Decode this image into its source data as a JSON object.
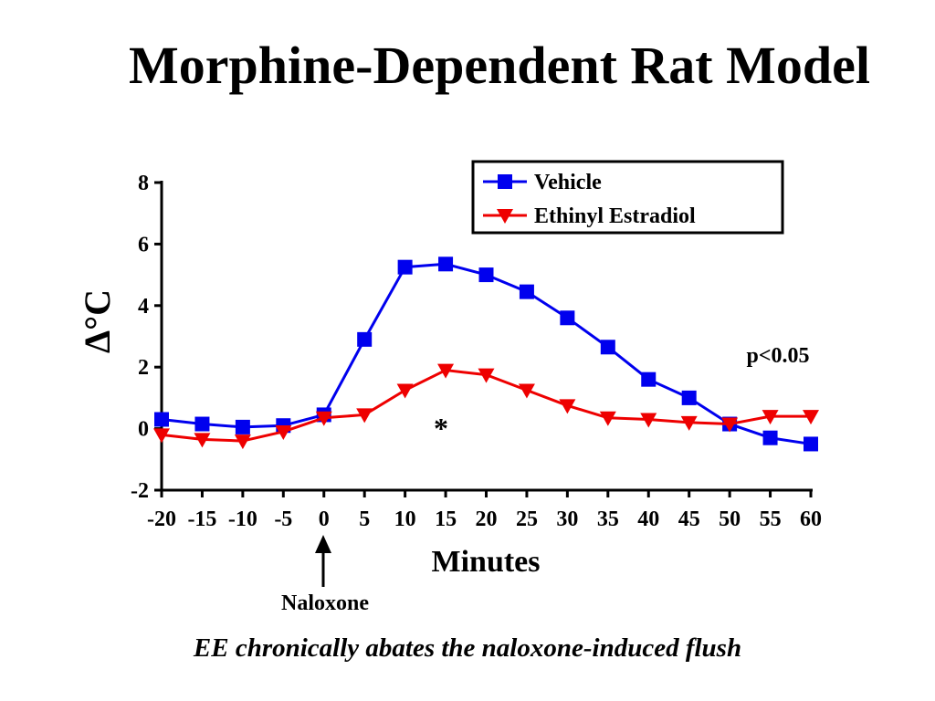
{
  "slide": {
    "title": "Morphine-Dependent Rat Model",
    "caption": "EE chronically abates the naloxone-induced flush"
  },
  "chart_data": {
    "type": "line",
    "title": "",
    "xlabel": "Minutes",
    "ylabel": "Δ°C",
    "x": [
      -20,
      -15,
      -10,
      -5,
      0,
      5,
      10,
      15,
      20,
      25,
      30,
      35,
      40,
      45,
      50,
      55,
      60
    ],
    "xlim": [
      -20,
      60
    ],
    "ylim": [
      -2,
      8
    ],
    "xticks": [
      -20,
      -15,
      -10,
      -5,
      0,
      5,
      10,
      15,
      20,
      25,
      30,
      35,
      40,
      45,
      50,
      55,
      60
    ],
    "yticks": [
      -2,
      0,
      2,
      4,
      6,
      8
    ],
    "grid": false,
    "legend_position": "top-right",
    "series": [
      {
        "name": "Vehicle",
        "color": "#0000ee",
        "marker": "square",
        "values": [
          0.3,
          0.15,
          0.05,
          0.1,
          0.45,
          2.9,
          5.25,
          5.35,
          5.0,
          4.45,
          3.6,
          2.65,
          1.6,
          1.0,
          0.15,
          -0.3,
          -0.5
        ]
      },
      {
        "name": "Ethinyl Estradiol",
        "color": "#ee0000",
        "marker": "triangle-down",
        "values": [
          -0.2,
          -0.35,
          -0.4,
          -0.1,
          0.35,
          0.45,
          1.25,
          1.9,
          1.75,
          1.25,
          0.75,
          0.35,
          0.3,
          0.2,
          0.15,
          0.4,
          0.4
        ]
      }
    ],
    "annotations": {
      "significance": "p<0.05",
      "star": "*",
      "event_label": "Naloxone",
      "event_x": 0
    }
  }
}
